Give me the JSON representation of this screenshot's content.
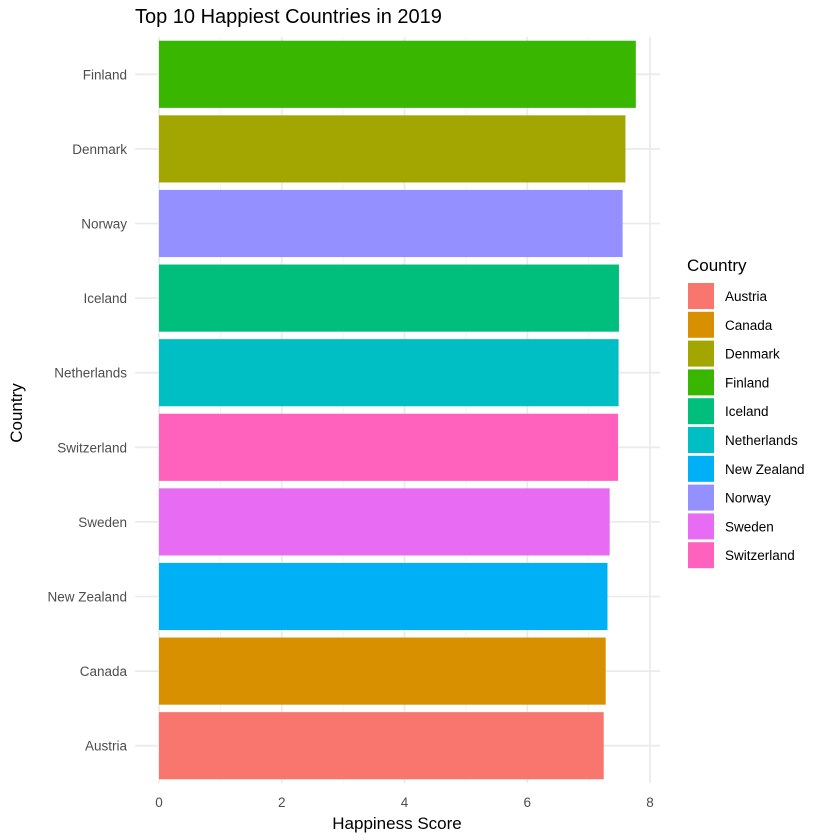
{
  "chart_data": {
    "type": "bar",
    "orientation": "horizontal",
    "title": "Top 10 Happiest Countries in 2019",
    "xlabel": "Happiness Score",
    "ylabel": "Country",
    "xlim": [
      0,
      8
    ],
    "x_ticks": [
      0,
      2,
      4,
      6,
      8
    ],
    "grid": true,
    "legend_position": "right",
    "legend_title": "Country",
    "categories": [
      "Finland",
      "Denmark",
      "Norway",
      "Iceland",
      "Netherlands",
      "Switzerland",
      "Sweden",
      "New Zealand",
      "Canada",
      "Austria"
    ],
    "values": [
      7.769,
      7.6,
      7.554,
      7.494,
      7.488,
      7.48,
      7.343,
      7.307,
      7.278,
      7.246
    ],
    "colors": {
      "Austria": "#F8766D",
      "Canada": "#D89000",
      "Denmark": "#A3A500",
      "Finland": "#39B600",
      "Iceland": "#00BF7D",
      "Netherlands": "#00BFC4",
      "New Zealand": "#00B0F6",
      "Norway": "#9590FF",
      "Sweden": "#E76BF3",
      "Switzerland": "#FF62BC"
    },
    "legend_entries": [
      "Austria",
      "Canada",
      "Denmark",
      "Finland",
      "Iceland",
      "Netherlands",
      "New Zealand",
      "Norway",
      "Sweden",
      "Switzerland"
    ]
  }
}
